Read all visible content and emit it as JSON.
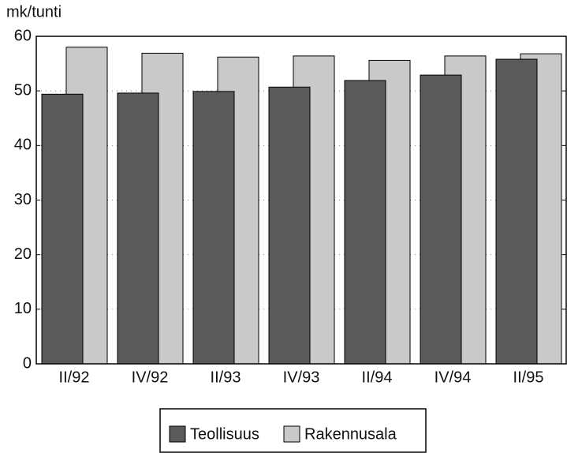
{
  "chart_data": {
    "type": "bar",
    "y_label": "mk/tunti",
    "categories": [
      "II/92",
      "IV/92",
      "II/93",
      "IV/93",
      "II/94",
      "IV/94",
      "II/95"
    ],
    "series": [
      {
        "name": "Teollisuus",
        "color": "#5a5a5a",
        "values": [
          49.4,
          49.6,
          49.9,
          50.7,
          51.9,
          52.9,
          55.8
        ]
      },
      {
        "name": "Rakennusala",
        "color": "#c9c9c9",
        "values": [
          58.0,
          56.9,
          56.2,
          56.4,
          55.6,
          56.4,
          56.8
        ]
      }
    ],
    "ylim": [
      0,
      60
    ],
    "yticks": [
      0,
      10,
      20,
      30,
      40,
      50,
      60
    ],
    "grid": true
  }
}
